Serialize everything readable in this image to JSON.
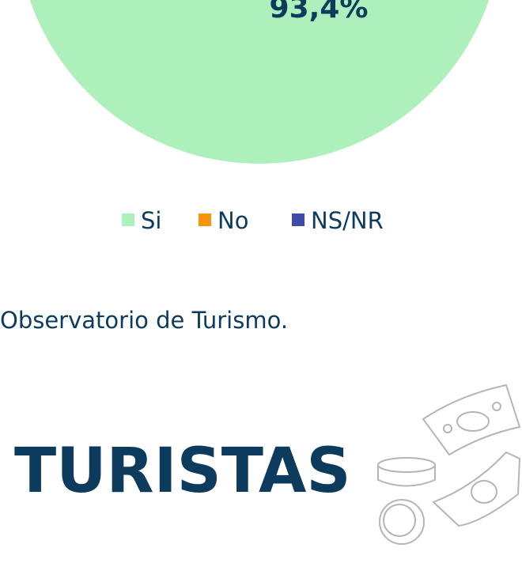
{
  "pie_label": "93,4%",
  "legend": [
    {
      "label": "Si",
      "color": "#aef0bb"
    },
    {
      "label": "No",
      "color": "#f7940c"
    },
    {
      "label": "NS/NR",
      "color": "#3e4ba8"
    }
  ],
  "source": "Observatorio de Turismo.",
  "heading": "TURISTAS"
}
